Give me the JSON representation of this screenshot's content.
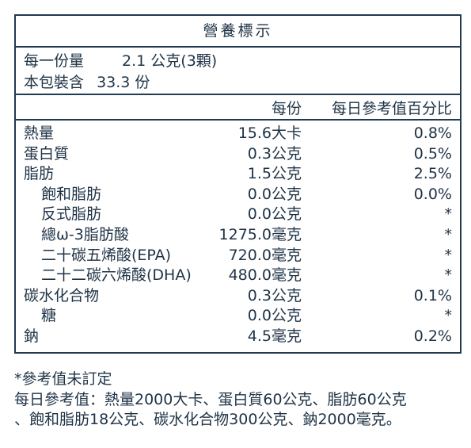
{
  "title": "營養標示",
  "serving": {
    "per_serving_label": "每一份量",
    "per_serving_value": "2.1 公克(3顆)",
    "servings_label": "本包裝含",
    "servings_value": "33.3 份"
  },
  "columns": {
    "per_serving": "每份",
    "daily_value": "每日參考值百分比"
  },
  "rows": [
    {
      "name": "熱量",
      "amount": "15.6大卡",
      "dv": "0.8%"
    },
    {
      "name": "蛋白質",
      "amount": "0.3公克",
      "dv": "0.5%"
    },
    {
      "name": "脂肪",
      "amount": "1.5公克",
      "dv": "2.5%"
    },
    {
      "name": "飽和脂肪",
      "amount": "0.0公克",
      "dv": "0.0%"
    },
    {
      "name": "反式脂肪",
      "amount": "0.0公克",
      "dv": "*"
    },
    {
      "name": "總ω-3脂肪酸",
      "amount": "1275.0毫克",
      "dv": "*"
    },
    {
      "name": "二十碳五烯酸(EPA)",
      "amount": "720.0毫克",
      "dv": "*"
    },
    {
      "name": "二十二碳六烯酸(DHA)",
      "amount": "480.0毫克",
      "dv": "*"
    },
    {
      "name": "碳水化合物",
      "amount": "0.3公克",
      "dv": "0.1%"
    },
    {
      "name": "糖",
      "amount": "0.0公克",
      "dv": "*"
    },
    {
      "name": "鈉",
      "amount": "4.5毫克",
      "dv": "0.2%"
    }
  ],
  "footnote": {
    "line1": "*參考值未訂定",
    "line2": "每日參考值：熱量2000大卡、蛋白質60公克、脂肪60公克",
    "line3": "、飽和脂肪18公克、碳水化合物300公克、鈉2000毫克。"
  },
  "colors": {
    "text": "#1f3346",
    "border": "#223a50"
  }
}
